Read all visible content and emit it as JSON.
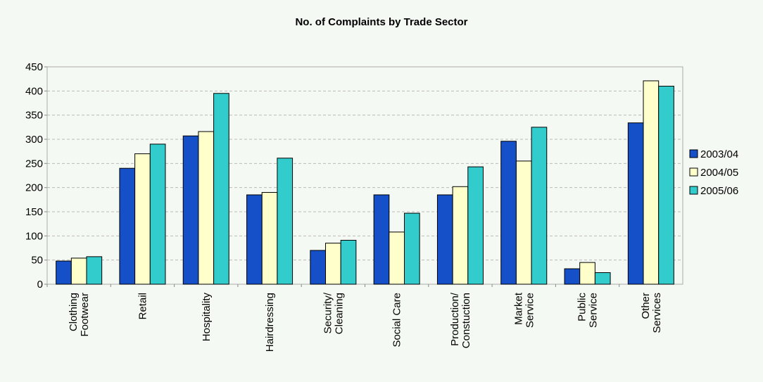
{
  "chart_data": {
    "type": "bar",
    "title": "No. of Complaints by Trade Sector",
    "categories": [
      "Clothing\nFootwear",
      "Retail",
      "Hospitality",
      "Hairdressing",
      "Security/\nCleaning",
      "Social Care",
      "Production/\nConstuction",
      "Market\nService",
      "Public\nService",
      "Other\nServices"
    ],
    "series": [
      {
        "name": "2003/04",
        "color": "#1550c8",
        "values": [
          48,
          240,
          307,
          185,
          70,
          185,
          185,
          296,
          32,
          334
        ]
      },
      {
        "name": "2004/05",
        "color": "#ffffcc",
        "values": [
          54,
          270,
          316,
          190,
          85,
          108,
          202,
          255,
          45,
          421
        ]
      },
      {
        "name": "2005/06",
        "color": "#33cccc",
        "values": [
          57,
          290,
          395,
          261,
          91,
          147,
          243,
          325,
          24,
          410
        ]
      }
    ],
    "ylim": [
      0,
      450
    ],
    "yticks": [
      0,
      50,
      100,
      150,
      200,
      250,
      300,
      350,
      400,
      450
    ],
    "grid": true,
    "legend": "right"
  }
}
